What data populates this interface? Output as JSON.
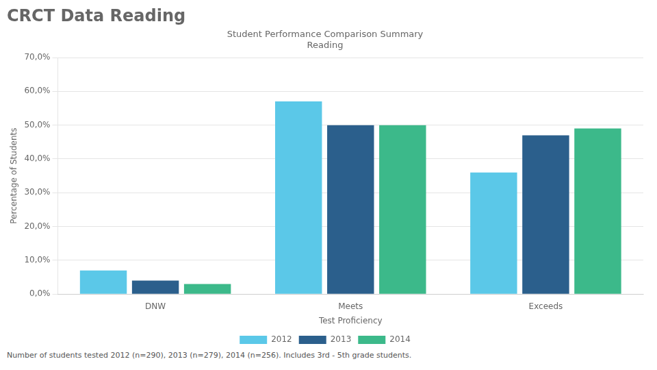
{
  "chart_data": {
    "type": "bar",
    "title": "CRCT Data Reading",
    "subtitle": "Student Performance Comparison Summary\nReading",
    "xlabel": "Test Proficiency",
    "ylabel": "Percentage of Students",
    "categories": [
      "DNW",
      "Meets",
      "Exceeds"
    ],
    "series": [
      {
        "name": "2012",
        "color": "#5BC8E8",
        "values": [
          7.0,
          57.0,
          36.0
        ]
      },
      {
        "name": "2013",
        "color": "#2B5F8C",
        "values": [
          4.0,
          50.0,
          47.0
        ]
      },
      {
        "name": "2014",
        "color": "#3CB98A",
        "values": [
          3.0,
          50.0,
          49.0
        ]
      }
    ],
    "ylim": [
      0,
      70
    ],
    "yticks": [
      {
        "value": 0,
        "label": "0,0%"
      },
      {
        "value": 10,
        "label": "10,0%"
      },
      {
        "value": 20,
        "label": "20,0%"
      },
      {
        "value": 30,
        "label": "30,0%"
      },
      {
        "value": 40,
        "label": "40,0%"
      },
      {
        "value": 50,
        "label": "50,0%"
      },
      {
        "value": 60,
        "label": "60,0%"
      },
      {
        "value": 70,
        "label": "70,0%"
      }
    ],
    "grid": true,
    "legend": "bottom",
    "annotations": [
      "Number of students tested 2012 (n=290), 2013 (n=279), 2014 (n=256).  Includes 3rd - 5th grade students."
    ]
  }
}
